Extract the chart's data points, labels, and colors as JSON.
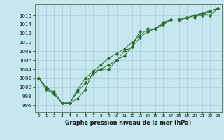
{
  "title": "Graphe pression niveau de la mer (hPa)",
  "background_color": "#c5e8f0",
  "grid_color": "#a8ccd8",
  "line_color": "#2d6e2d",
  "x_labels": [
    "0",
    "1",
    "2",
    "3",
    "4",
    "5",
    "6",
    "7",
    "8",
    "9",
    "10",
    "11",
    "12",
    "13",
    "14",
    "15",
    "16",
    "17",
    "18",
    "19",
    "20",
    "21",
    "22",
    "23"
  ],
  "ylim": [
    994.5,
    1018.5
  ],
  "yticks": [
    996,
    998,
    1000,
    1002,
    1004,
    1006,
    1008,
    1010,
    1012,
    1014,
    1016
  ],
  "line1": [
    1002,
    1000,
    998.5,
    996.5,
    996.5,
    999,
    1001,
    1003,
    1004,
    1005,
    1006,
    1007,
    1009,
    1011,
    1012.5,
    1013,
    1014,
    1015,
    1015,
    1015.5,
    1016,
    1016.5,
    1017,
    1017.5
  ],
  "line2": [
    1002,
    999.5,
    998.5,
    996.5,
    996.5,
    999.5,
    1002,
    1003.5,
    1005,
    1006.5,
    1007.5,
    1008.5,
    1010,
    1011.5,
    1013,
    1013,
    1014.5,
    1015,
    1015,
    1015.5,
    1016,
    1016,
    1017,
    1017.5
  ],
  "line3": [
    1002,
    1000,
    999,
    996.5,
    996.5,
    997.5,
    999.5,
    1003.5,
    1004,
    1004,
    1006,
    1008,
    1009,
    1012.5,
    1012.5,
    1013,
    1014,
    1015,
    1015,
    1015.5,
    1015.5,
    1016.5,
    1016,
    1017.5
  ],
  "figsize": [
    3.2,
    2.0
  ],
  "dpi": 100
}
